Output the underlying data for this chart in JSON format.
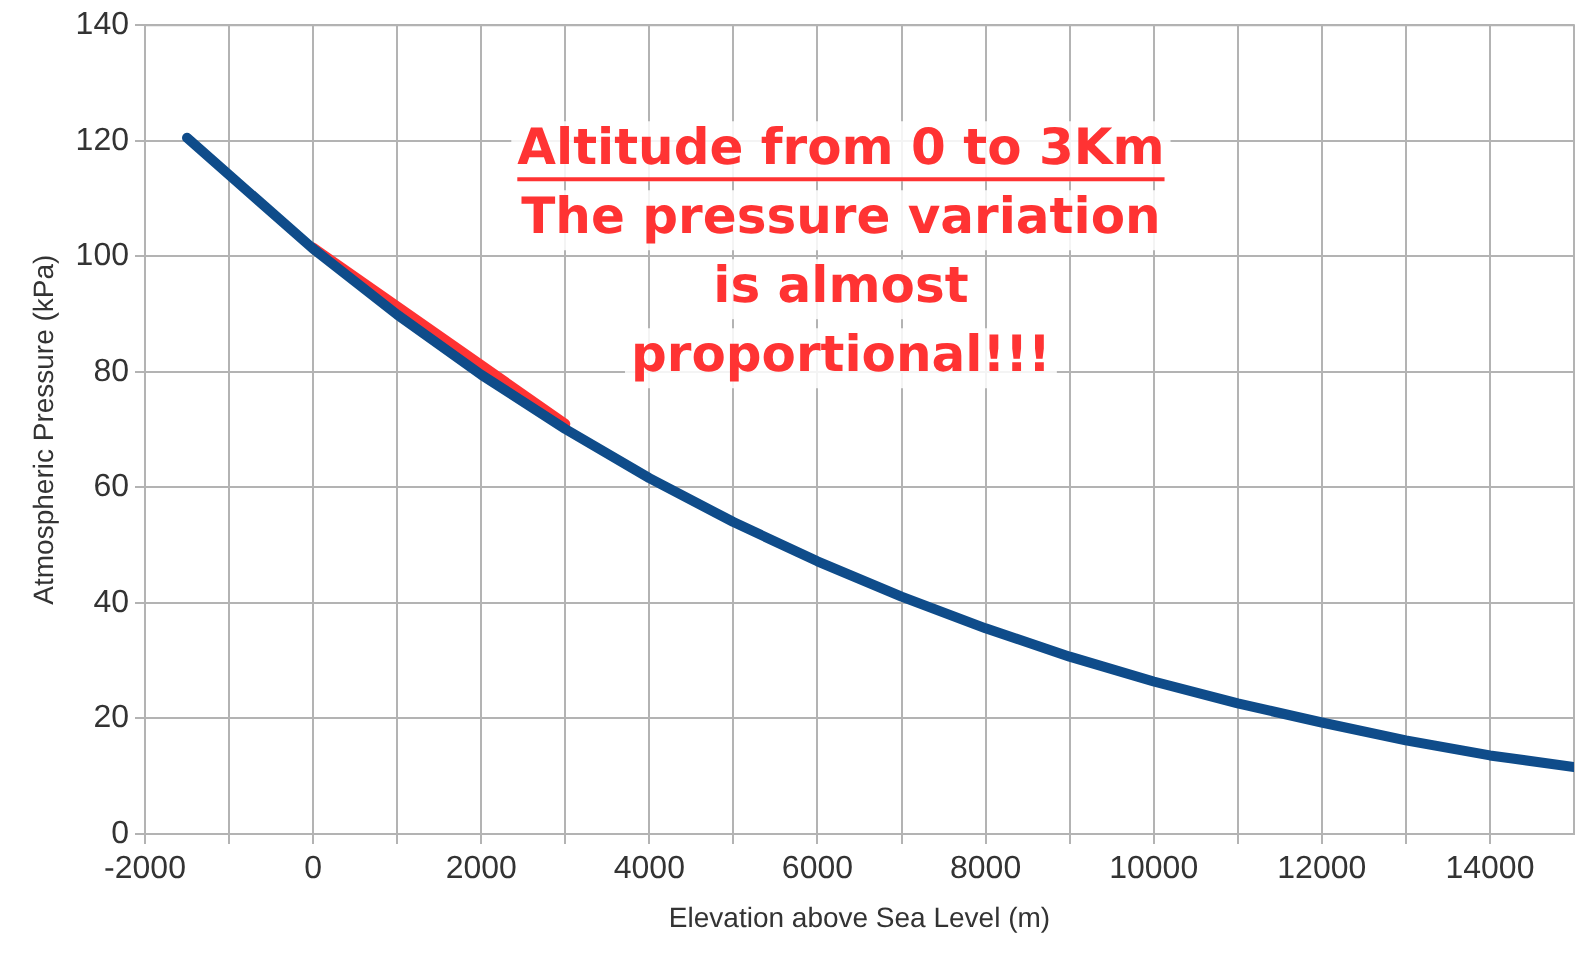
{
  "chart_data": {
    "type": "line",
    "xlabel": "Elevation above Sea Level (m)",
    "ylabel": "Atmospheric Pressure (kPa)",
    "annotations": [
      "Altitude from 0 to 3Km",
      "The pressure variation",
      "is almost",
      "proportional!!!"
    ],
    "series": [
      {
        "color": "#0f4c8a",
        "x": [
          -1500,
          0,
          1000,
          2000,
          3000,
          4000,
          5000,
          6000,
          7000,
          8000,
          9000,
          10000,
          11000,
          12000,
          13000,
          14000,
          15000
        ],
        "values": [
          120.5,
          101.3,
          89.9,
          79.5,
          70.1,
          61.6,
          54.0,
          47.2,
          41.1,
          35.6,
          30.7,
          26.4,
          22.6,
          19.3,
          16.2,
          13.6,
          11.6
        ]
      },
      {
        "color": "#ff3333",
        "x": [
          0,
          3000
        ],
        "values": [
          101.5,
          71
        ]
      }
    ],
    "xlim": [
      -2000,
      15000
    ],
    "xticks": [
      -2000,
      {
        "value": -1000,
        "label": null
      },
      0,
      {
        "value": 1000,
        "label": null
      },
      2000,
      {
        "value": 3000,
        "label": null
      },
      4000,
      {
        "value": 5000,
        "label": null
      },
      6000,
      {
        "value": 7000,
        "label": null
      },
      8000,
      {
        "value": 9000,
        "label": null
      },
      10000,
      {
        "value": 11000,
        "label": null
      },
      12000,
      {
        "value": 13000,
        "label": null
      },
      14000
    ],
    "ylim": [
      0,
      140
    ],
    "yticks": [
      0,
      20,
      40,
      60,
      80,
      100,
      120,
      140
    ],
    "grid": true,
    "legend": false,
    "marker": "none",
    "line_style": "solid"
  }
}
